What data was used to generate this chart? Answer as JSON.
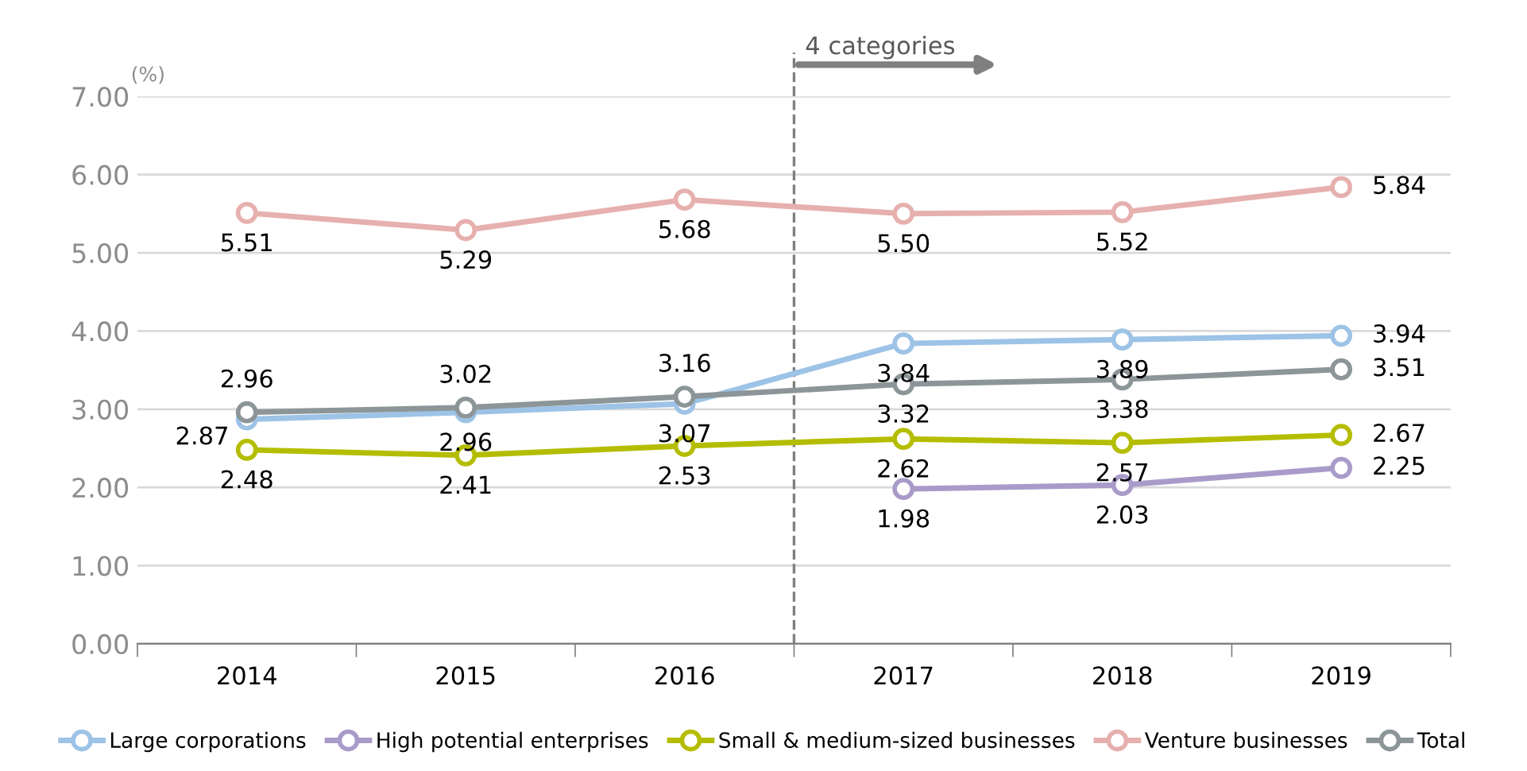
{
  "chart_data": {
    "type": "line",
    "ylabel": "(%)",
    "x": [
      2014,
      2015,
      2016,
      2017,
      2018,
      2019
    ],
    "xlim": [
      2013.5,
      2019.5
    ],
    "xticks": [
      2014,
      2015,
      2016,
      2017,
      2018,
      2019
    ],
    "ylim": [
      0,
      7
    ],
    "yticks": [
      {
        "value": 0,
        "label": "0.00"
      },
      {
        "value": 1,
        "label": "1.00"
      },
      {
        "value": 2,
        "label": "2.00"
      },
      {
        "value": 3,
        "label": "3.00"
      },
      {
        "value": 4,
        "label": "4.00"
      },
      {
        "value": 5,
        "label": "5.00"
      },
      {
        "value": 6,
        "label": "6.00"
      },
      {
        "value": 7,
        "label": "7.00"
      }
    ],
    "grid": "y",
    "legend": "bottom",
    "marker": "circle",
    "line_style": "solid",
    "ref_lines": [
      {
        "axis": "x",
        "value": 2016.5,
        "label": "4 categories",
        "color": "#7f7f7f",
        "line_style": "dashed"
      }
    ],
    "series": [
      {
        "name": "Large corporations",
        "color": "#9dc3e6",
        "values": [
          2.87,
          2.96,
          3.07,
          3.84,
          3.89,
          3.94
        ],
        "value_labels": [
          "2.87",
          "2.96",
          "3.07",
          "3.84",
          "3.89",
          "3.94"
        ]
      },
      {
        "name": "High potential enterprises",
        "color": "#a99bc9",
        "values": [
          null,
          null,
          null,
          1.98,
          2.03,
          2.25
        ],
        "value_labels": [
          null,
          null,
          null,
          "1.98",
          "2.03",
          "2.25"
        ]
      },
      {
        "name": "Small & medium-sized businesses",
        "color": "#b5bd00",
        "values": [
          2.48,
          2.41,
          2.53,
          2.62,
          2.57,
          2.67
        ],
        "value_labels": [
          "2.48",
          "2.41",
          "2.53",
          "2.62",
          "2.57",
          "2.67"
        ]
      },
      {
        "name": "Venture businesses",
        "color": "#e6b0ae",
        "values": [
          5.51,
          5.29,
          5.68,
          5.5,
          5.52,
          5.84
        ],
        "value_labels": [
          "5.51",
          "5.29",
          "5.68",
          "5.50",
          "5.52",
          "5.84"
        ]
      },
      {
        "name": "Total",
        "color": "#8c9597",
        "values": [
          2.96,
          3.02,
          3.16,
          3.32,
          3.38,
          3.51
        ],
        "value_labels": [
          "2.96",
          "3.02",
          "3.16",
          "3.32",
          "3.38",
          "3.51"
        ]
      }
    ]
  }
}
